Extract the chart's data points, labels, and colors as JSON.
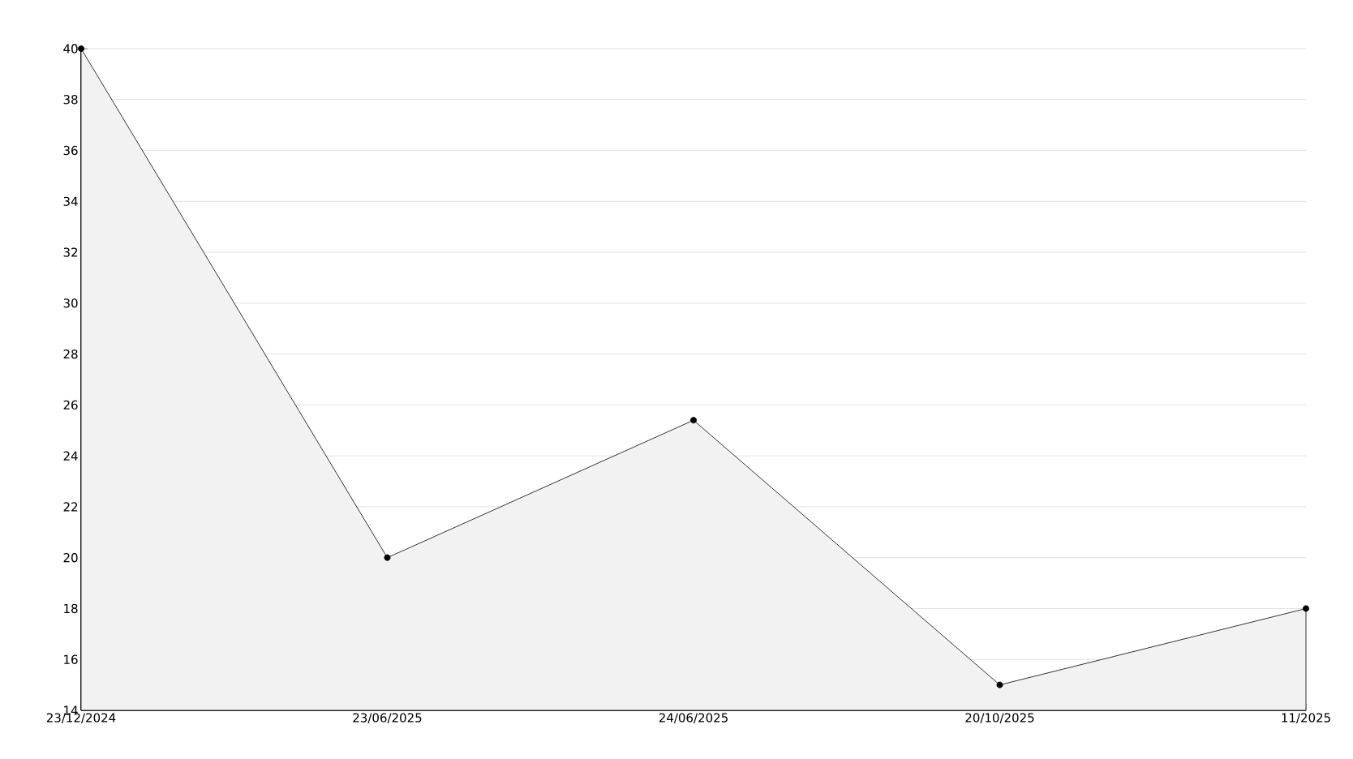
{
  "chart_data": {
    "type": "area",
    "categories": [
      "23/12/2024",
      "23/06/2025",
      "24/06/2025",
      "20/10/2025",
      "11/2025"
    ],
    "series": [
      {
        "color": "#000000",
        "values": [
          40,
          20,
          25.4,
          15,
          18
        ]
      }
    ],
    "ylim": [
      14,
      40
    ],
    "yticks": [
      14,
      16,
      18,
      20,
      22,
      24,
      26,
      28,
      30,
      32,
      34,
      36,
      38,
      40
    ],
    "grid": "y",
    "marker": "circle",
    "line_style": "solid"
  }
}
